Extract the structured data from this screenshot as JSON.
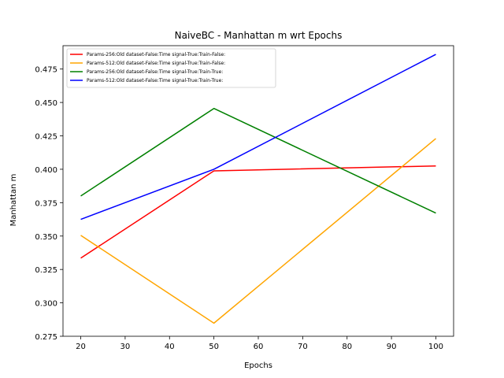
{
  "chart_data": {
    "type": "line",
    "title": "NaiveBC - Manhattan m wrt Epochs",
    "xlabel": "Epochs",
    "ylabel": "Manhattan m",
    "x": [
      20,
      50,
      100
    ],
    "xlim": [
      16,
      104
    ],
    "ylim": [
      0.275,
      0.4925
    ],
    "xticks": [
      20,
      30,
      40,
      50,
      60,
      70,
      80,
      90,
      100
    ],
    "yticks": [
      0.275,
      0.3,
      0.325,
      0.35,
      0.375,
      0.4,
      0.425,
      0.45,
      0.475
    ],
    "ytick_labels": [
      "0.275",
      "0.300",
      "0.325",
      "0.350",
      "0.375",
      "0.400",
      "0.425",
      "0.450",
      "0.475"
    ],
    "grid": false,
    "legend_position": "top-left",
    "series": [
      {
        "name": "Params-256:Old dataset-False:Time signal-True:Train-False:",
        "color": "#ff0000",
        "values": [
          0.3335,
          0.3988,
          0.4025
        ]
      },
      {
        "name": "Params-512:Old dataset-False:Time signal-True:Train-False:",
        "color": "#ffa500",
        "values": [
          0.3505,
          0.2848,
          0.423
        ]
      },
      {
        "name": "Params-256:Old dataset-False:Time signal-True:Train-True:",
        "color": "#008000",
        "values": [
          0.38,
          0.4455,
          0.3672
        ]
      },
      {
        "name": "Params-512:Old dataset-False:Time signal-True:Train-True:",
        "color": "#0000ff",
        "values": [
          0.3625,
          0.4,
          0.486
        ]
      }
    ]
  }
}
